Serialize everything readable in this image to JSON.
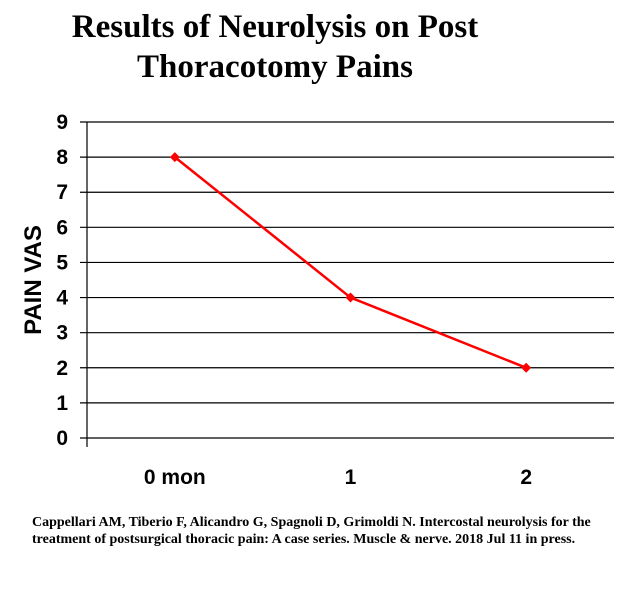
{
  "chart_data": {
    "type": "line",
    "title": "Results of Neurolysis on Post Thoracotomy Pains",
    "title_lines": [
      "Results of Neurolysis on Post",
      "Thoracotomy Pains"
    ],
    "xlabel": "",
    "ylabel": "PAIN VAS",
    "categories": [
      "0 mon",
      "1",
      "2"
    ],
    "series": [
      {
        "values": [
          8,
          4,
          2
        ],
        "color": "#ff0000",
        "marker": "diamond"
      }
    ],
    "ylim": [
      0,
      9
    ],
    "yticks": [
      0,
      1,
      2,
      3,
      4,
      5,
      6,
      7,
      8,
      9
    ],
    "grid": true,
    "legend": "none"
  },
  "citation": "Cappellari AM, Tiberio F, Alicandro G, Spagnoli D, Grimoldi N. Intercostal neurolysis for the treatment of postsurgical thoracic pain: A case series. Muscle & nerve. 2018 Jul 11 in press."
}
